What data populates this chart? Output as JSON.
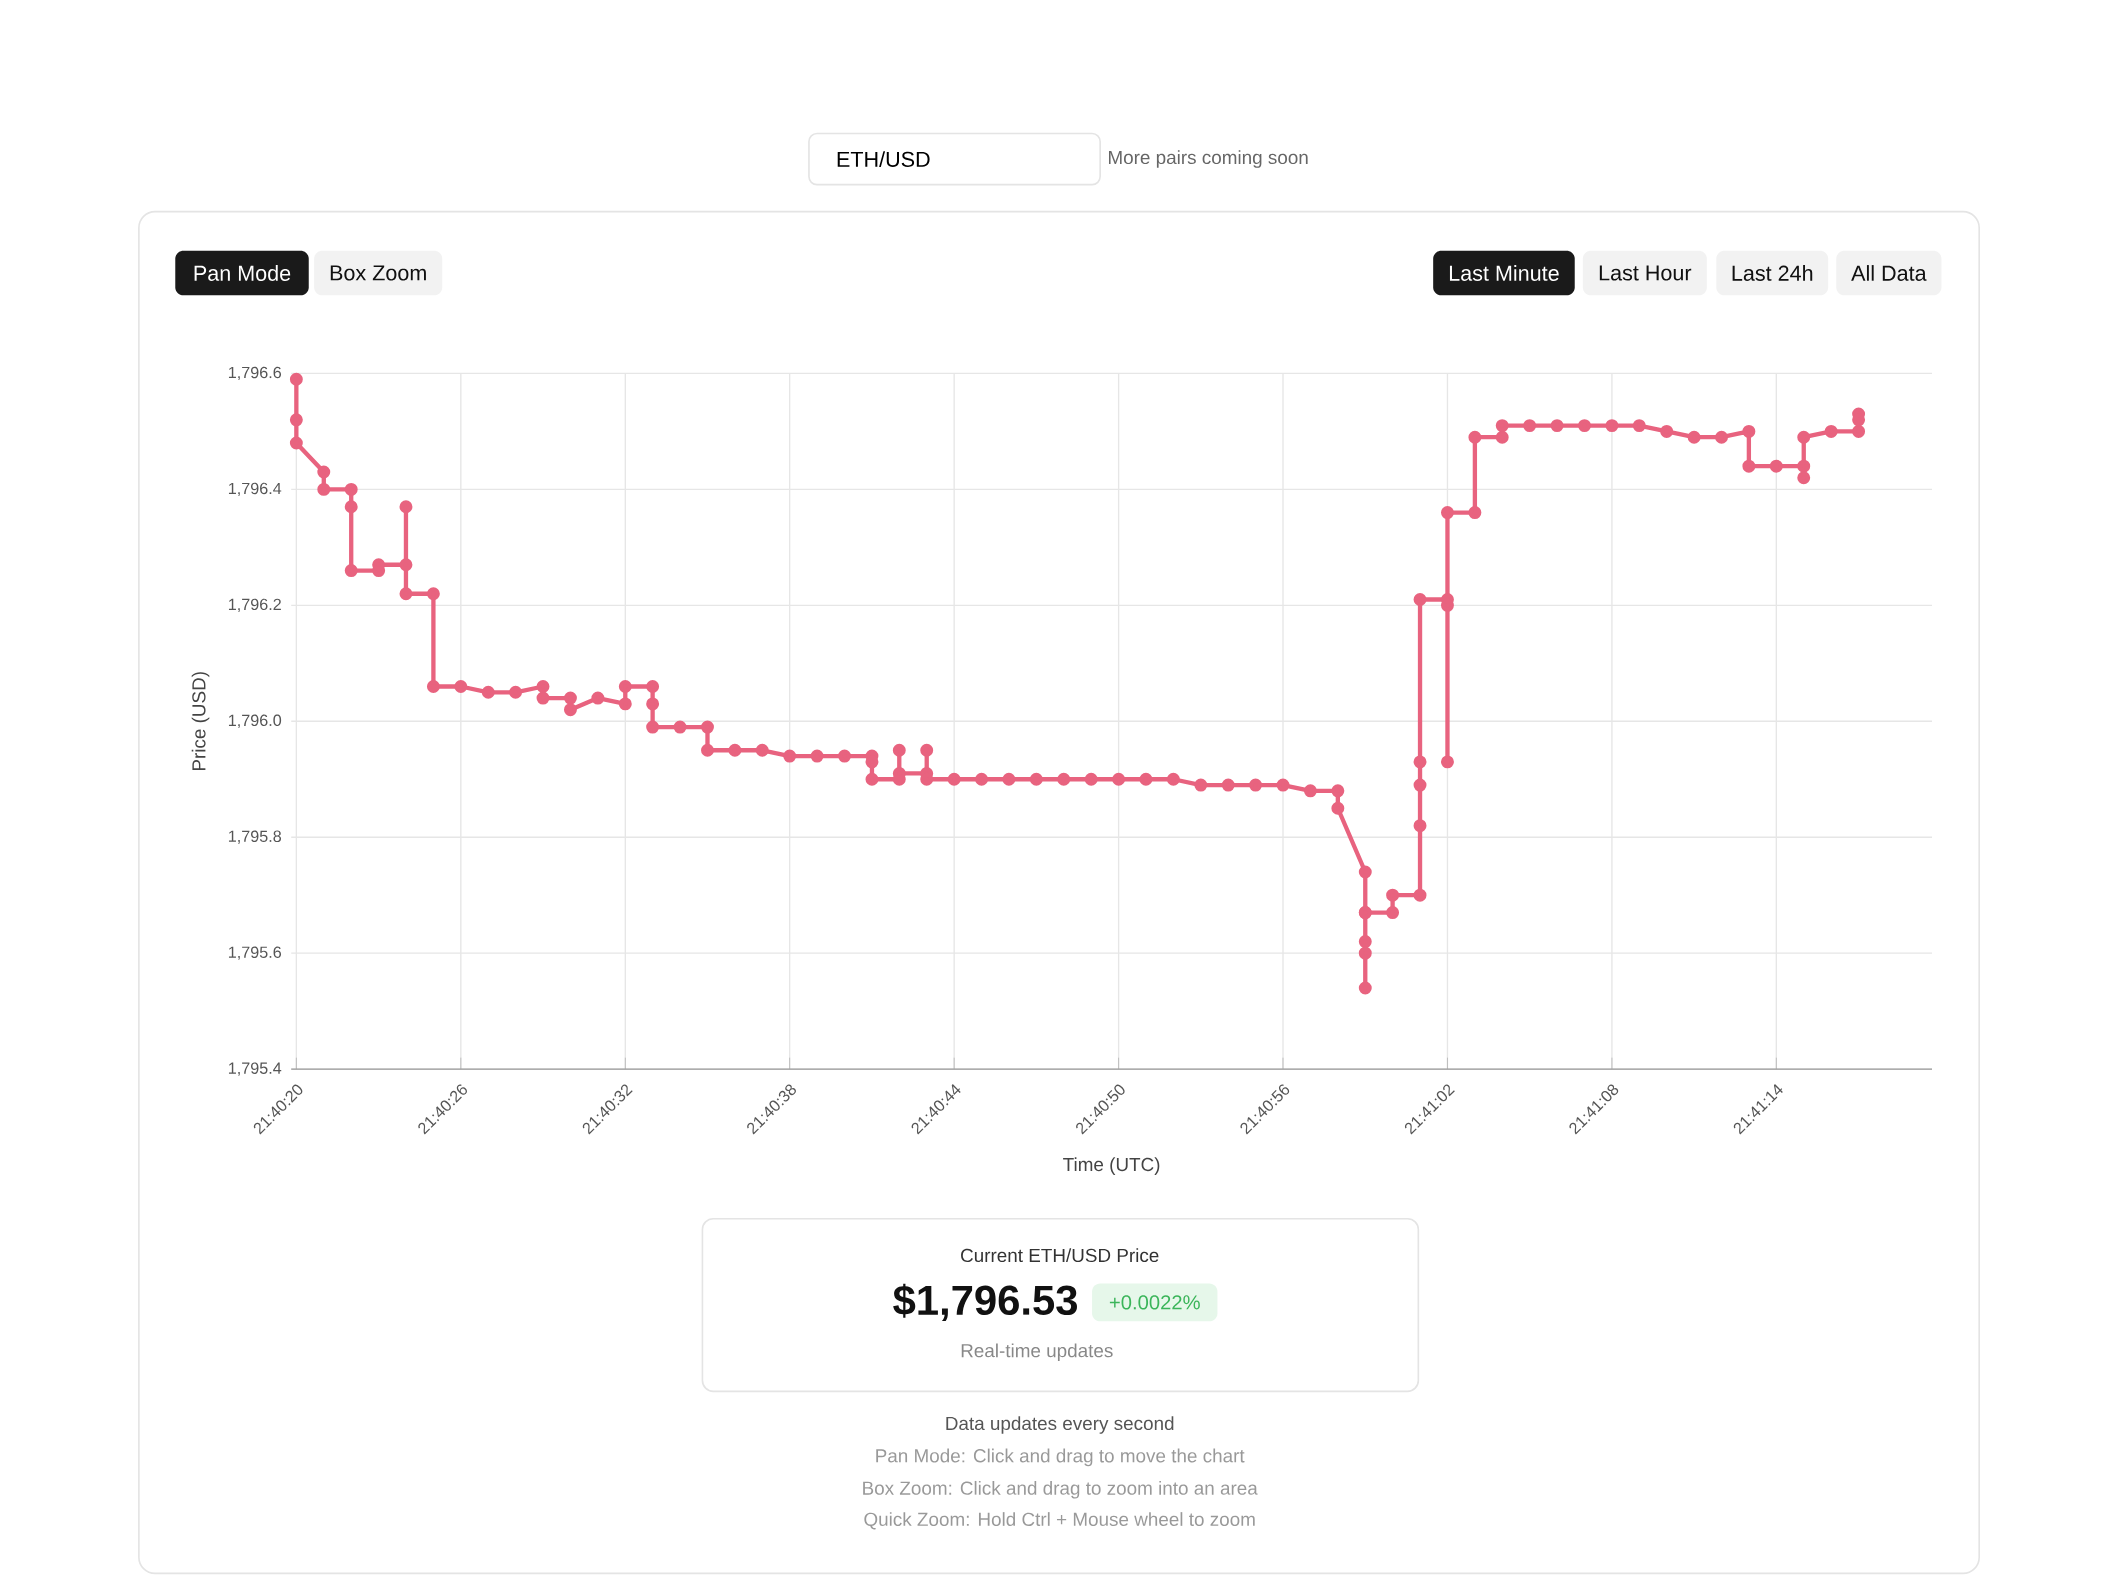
{
  "chart_data": {
    "type": "line",
    "subtitle": "ETH/USD",
    "xlabel": "Time (UTC)",
    "ylabel": "Price (USD)",
    "series": [
      {
        "color": "#e8637f",
        "x": [
          21.672222,
          21.672222,
          21.672222,
          21.6725,
          21.6725,
          21.672778,
          21.672778,
          21.672778,
          21.673056,
          21.673056,
          21.673333,
          21.673333,
          21.673333,
          21.673611,
          21.673611,
          21.673889,
          21.674167,
          21.674444,
          21.674722,
          21.674722,
          21.675,
          21.675,
          21.675278,
          21.675556,
          21.675556,
          21.675833,
          21.675833,
          21.675833,
          21.676111,
          21.676389,
          21.676389,
          21.676667,
          21.676944,
          21.677222,
          21.6775,
          21.677778,
          21.678056,
          21.678056,
          21.678056,
          21.678333,
          21.678333,
          21.678333,
          21.678611,
          21.678611,
          21.678611,
          21.678889,
          21.679167,
          21.679444,
          21.679722,
          21.68,
          21.680278,
          21.680556,
          21.680833,
          21.681111,
          21.681389,
          21.681667,
          21.681944,
          21.682222,
          21.6825,
          21.682778,
          21.682778,
          21.683056,
          21.683056,
          21.683056,
          21.683056,
          21.683056,
          21.683056,
          21.683333,
          21.683333,
          21.683611,
          21.683611,
          21.683611,
          21.683611,
          21.683611,
          21.683889,
          21.683889,
          21.683889,
          21.683889,
          21.684167,
          21.684167,
          21.684444,
          21.684444,
          21.684722,
          21.685,
          21.685278,
          21.685556,
          21.685833,
          21.686111,
          21.686389,
          21.686667,
          21.686944,
          21.686944,
          21.687222,
          21.6875,
          21.6875,
          21.6875,
          21.687778,
          21.688056,
          21.688056,
          21.688056
        ],
        "values": [
          1796.59,
          1796.52,
          1796.48,
          1796.43,
          1796.4,
          1796.4,
          1796.37,
          1796.26,
          1796.26,
          1796.27,
          1796.27,
          1796.37,
          1796.22,
          1796.22,
          1796.06,
          1796.06,
          1796.05,
          1796.05,
          1796.06,
          1796.04,
          1796.04,
          1796.02,
          1796.04,
          1796.03,
          1796.06,
          1796.06,
          1796.03,
          1795.99,
          1795.99,
          1795.99,
          1795.95,
          1795.95,
          1795.95,
          1795.94,
          1795.94,
          1795.94,
          1795.94,
          1795.93,
          1795.9,
          1795.9,
          1795.95,
          1795.91,
          1795.91,
          1795.95,
          1795.9,
          1795.9,
          1795.9,
          1795.9,
          1795.9,
          1795.9,
          1795.9,
          1795.9,
          1795.9,
          1795.9,
          1795.89,
          1795.89,
          1795.89,
          1795.89,
          1795.88,
          1795.88,
          1795.85,
          1795.74,
          1795.67,
          1795.62,
          1795.6,
          1795.54,
          1795.67,
          1795.67,
          1795.7,
          1795.7,
          1795.82,
          1795.89,
          1795.93,
          1796.21,
          1796.21,
          1796.2,
          1795.93,
          1796.36,
          1796.36,
          1796.49,
          1796.49,
          1796.51,
          1796.51,
          1796.51,
          1796.51,
          1796.51,
          1796.51,
          1796.5,
          1796.49,
          1796.49,
          1796.5,
          1796.44,
          1796.44,
          1796.44,
          1796.42,
          1796.49,
          1796.5,
          1796.5,
          1796.53,
          1796.52
        ]
      }
    ],
    "xlim": [
      21.67217,
      21.6888
    ],
    "xticks": [
      {
        "value": 21.672222,
        "label": "21:40:20"
      },
      {
        "value": 21.673889,
        "label": "21:40:26"
      },
      {
        "value": 21.675556,
        "label": "21:40:32"
      },
      {
        "value": 21.677222,
        "label": "21:40:38"
      },
      {
        "value": 21.678889,
        "label": "21:40:44"
      },
      {
        "value": 21.680556,
        "label": "21:40:50"
      },
      {
        "value": 21.682222,
        "label": "21:40:56"
      },
      {
        "value": 21.683889,
        "label": "21:41:02"
      },
      {
        "value": 21.685556,
        "label": "21:41:08"
      },
      {
        "value": 21.687222,
        "label": "21:41:14"
      }
    ],
    "ylim": [
      1795.4,
      1796.6
    ],
    "yticks": [
      {
        "value": 1795.4,
        "label": "1,795.4"
      },
      {
        "value": 1795.6,
        "label": "1,795.6"
      },
      {
        "value": 1795.8,
        "label": "1,795.8"
      },
      {
        "value": 1796.0,
        "label": "1,796.0"
      },
      {
        "value": 1796.2,
        "label": "1,796.2"
      },
      {
        "value": 1796.4,
        "label": "1,796.4"
      },
      {
        "value": 1796.6,
        "label": "1,796.6"
      }
    ],
    "grid": true,
    "marker": "circle",
    "line_style": "solid",
    "annotations": [
      "More pairs coming soon",
      "Pan Mode",
      "Box Zoom",
      "Last Minute",
      "Last Hour",
      "Last 24h",
      "All Data",
      "Current ETH/USD Price",
      "$1,796.53",
      "+0.0022%",
      "Real-time updates",
      "Data updates every second",
      "Pan Mode: Click and drag to move the chart",
      "Box Zoom: Click and drag to zoom into an area",
      "Quick Zoom: Hold Ctrl + Mouse wheel to zoom"
    ]
  }
}
